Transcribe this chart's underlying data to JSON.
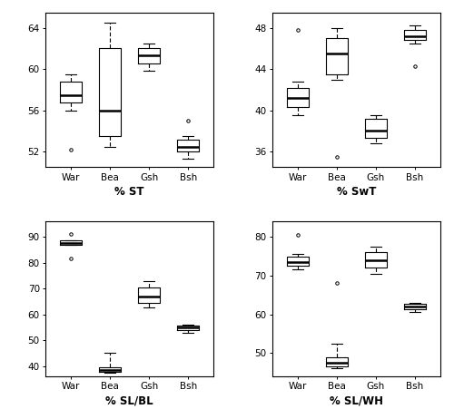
{
  "plots": [
    {
      "title": "% ST",
      "ylabel_ticks": [
        52,
        56,
        60,
        64
      ],
      "ylim": [
        50.5,
        65.5
      ],
      "breeds": [
        "War",
        "Bea",
        "Gsh",
        "Bsh"
      ],
      "boxes": [
        {
          "med": 57.5,
          "q1": 56.8,
          "q3": 58.8,
          "whislo": 56.0,
          "whishi": 59.5,
          "fliers": [
            52.2
          ]
        },
        {
          "med": 56.0,
          "q1": 53.5,
          "q3": 62.0,
          "whislo": 52.5,
          "whishi": 64.5,
          "fliers": []
        },
        {
          "med": 61.3,
          "q1": 60.5,
          "q3": 62.0,
          "whislo": 59.8,
          "whishi": 62.5,
          "fliers": []
        },
        {
          "med": 52.5,
          "q1": 52.0,
          "q3": 53.2,
          "whislo": 51.3,
          "whishi": 53.5,
          "fliers": [
            55.0
          ]
        }
      ]
    },
    {
      "title": "% SwT",
      "ylabel_ticks": [
        36,
        40,
        44,
        48
      ],
      "ylim": [
        34.5,
        49.5
      ],
      "breeds": [
        "War",
        "Bea",
        "Gsh",
        "Bsh"
      ],
      "boxes": [
        {
          "med": 41.2,
          "q1": 40.3,
          "q3": 42.2,
          "whislo": 39.5,
          "whishi": 42.8,
          "fliers": [
            47.8
          ]
        },
        {
          "med": 45.5,
          "q1": 43.5,
          "q3": 47.0,
          "whislo": 43.0,
          "whishi": 48.0,
          "fliers": [
            35.5
          ]
        },
        {
          "med": 38.0,
          "q1": 37.3,
          "q3": 39.2,
          "whislo": 36.8,
          "whishi": 39.5,
          "fliers": []
        },
        {
          "med": 47.2,
          "q1": 46.8,
          "q3": 47.8,
          "whislo": 46.5,
          "whishi": 48.2,
          "fliers": [
            44.3
          ]
        }
      ]
    },
    {
      "title": "% SL/BL",
      "ylabel_ticks": [
        40,
        50,
        60,
        70,
        80,
        90
      ],
      "ylim": [
        36,
        96
      ],
      "breeds": [
        "War",
        "Bea",
        "Gsh",
        "Bsh"
      ],
      "boxes": [
        {
          "med": 87.5,
          "q1": 87.0,
          "q3": 88.5,
          "whislo": 87.0,
          "whishi": 88.5,
          "fliers": [
            91.0,
            81.5
          ]
        },
        {
          "med": 38.5,
          "q1": 37.8,
          "q3": 39.5,
          "whislo": 37.3,
          "whishi": 45.0,
          "fliers": []
        },
        {
          "med": 67.0,
          "q1": 64.5,
          "q3": 70.5,
          "whislo": 62.5,
          "whishi": 73.0,
          "fliers": []
        },
        {
          "med": 55.0,
          "q1": 54.0,
          "q3": 55.8,
          "whislo": 53.0,
          "whishi": 56.0,
          "fliers": []
        }
      ]
    },
    {
      "title": "% SL/WH",
      "ylabel_ticks": [
        50,
        60,
        70,
        80
      ],
      "ylim": [
        44,
        84
      ],
      "breeds": [
        "War",
        "Bea",
        "Gsh",
        "Bsh"
      ],
      "boxes": [
        {
          "med": 73.5,
          "q1": 72.5,
          "q3": 75.0,
          "whislo": 71.5,
          "whishi": 75.5,
          "fliers": [
            80.5
          ]
        },
        {
          "med": 47.5,
          "q1": 46.5,
          "q3": 49.0,
          "whislo": 46.0,
          "whishi": 52.5,
          "fliers": [
            68.0
          ]
        },
        {
          "med": 74.0,
          "q1": 72.0,
          "q3": 76.0,
          "whislo": 70.5,
          "whishi": 77.5,
          "fliers": []
        },
        {
          "med": 62.0,
          "q1": 61.2,
          "q3": 62.8,
          "whislo": 60.5,
          "whishi": 63.0,
          "fliers": []
        }
      ]
    }
  ],
  "figsize": [
    5.0,
    4.51
  ],
  "dpi": 100
}
